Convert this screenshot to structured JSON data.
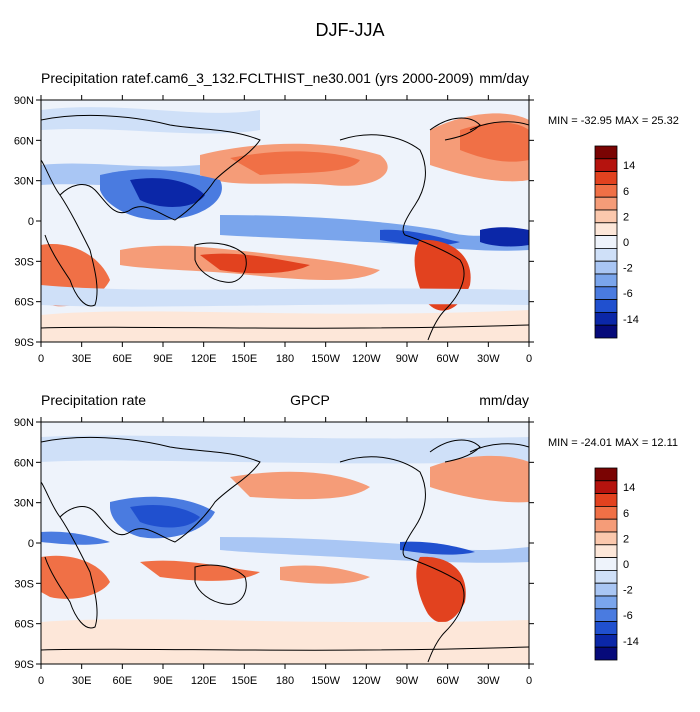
{
  "figure": {
    "title": "DJF-JJA"
  },
  "colorbar": {
    "labels": [
      "14",
      "6",
      "2",
      "0",
      "-2",
      "-6",
      "-14"
    ],
    "colors": [
      "#7a0403",
      "#b5130e",
      "#e2421f",
      "#f07046",
      "#f59c78",
      "#fbc8ad",
      "#fde7d9",
      "#eef3fb",
      "#cfe0f8",
      "#a9c6f4",
      "#7aa5ec",
      "#4a7be0",
      "#2050cf",
      "#0b27a8",
      "#060a7a"
    ]
  },
  "axes": {
    "lon_ticks": [
      "0",
      "30E",
      "60E",
      "90E",
      "120E",
      "150E",
      "180",
      "150W",
      "120W",
      "90W",
      "60W",
      "30W",
      "0"
    ],
    "lat_ticks": [
      "90N",
      "60N",
      "30N",
      "0",
      "30S",
      "60S",
      "90S"
    ]
  },
  "panels": [
    {
      "left_label": "Precipitation rate",
      "center_label": "f.cam6_3_132.FCLTHIST_ne30.001 (yrs 2000-2009)",
      "right_label": "mm/day",
      "minmax": "MIN = -32.95 MAX =  25.32"
    },
    {
      "left_label": "Precipitation rate",
      "center_label": "GPCP",
      "right_label": "mm/day",
      "minmax": "MIN = -24.01 MAX =  12.11"
    }
  ]
}
